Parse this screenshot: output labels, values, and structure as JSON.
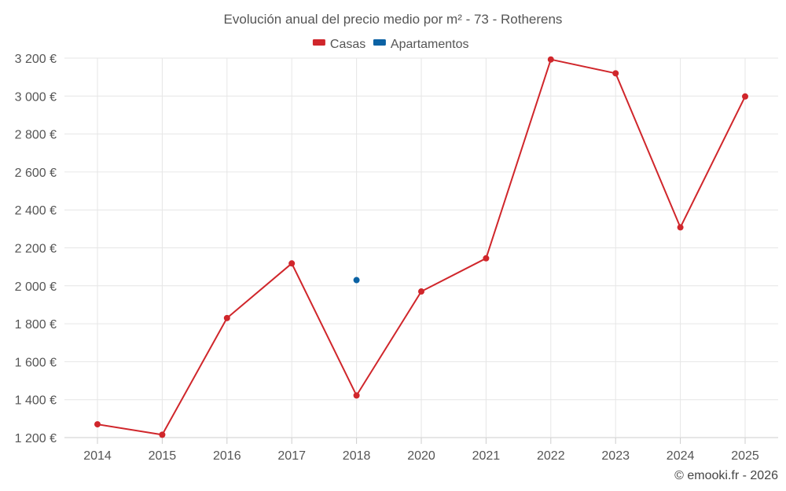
{
  "chart_data": {
    "type": "line",
    "title": "Evolución anual del precio medio por m² - 73 - Rotherens",
    "categories": [
      "2014",
      "2015",
      "2016",
      "2017",
      "2018",
      "2020",
      "2021",
      "2022",
      "2023",
      "2024",
      "2025"
    ],
    "series": [
      {
        "name": "Casas",
        "color": "#d0262b",
        "values": [
          1270,
          1215,
          1830,
          2118,
          1422,
          1970,
          2145,
          3193,
          3120,
          2308,
          2998
        ]
      },
      {
        "name": "Apartamentos",
        "color": "#0b62a4",
        "values": [
          null,
          null,
          null,
          null,
          2030,
          null,
          null,
          null,
          null,
          null,
          null
        ]
      }
    ],
    "ylim": [
      1200,
      3200
    ],
    "yticks": [
      1200,
      1400,
      1600,
      1800,
      2000,
      2200,
      2400,
      2600,
      2800,
      3000,
      3200
    ],
    "ytick_labels": [
      "1 200 €",
      "1 400 €",
      "1 600 €",
      "1 800 €",
      "2 000 €",
      "2 200 €",
      "2 400 €",
      "2 600 €",
      "2 800 €",
      "3 000 €",
      "3 200 €"
    ],
    "xlabel": "",
    "ylabel": "",
    "grid": true,
    "legend": "top-center",
    "credit": "© emooki.fr - 2026"
  }
}
